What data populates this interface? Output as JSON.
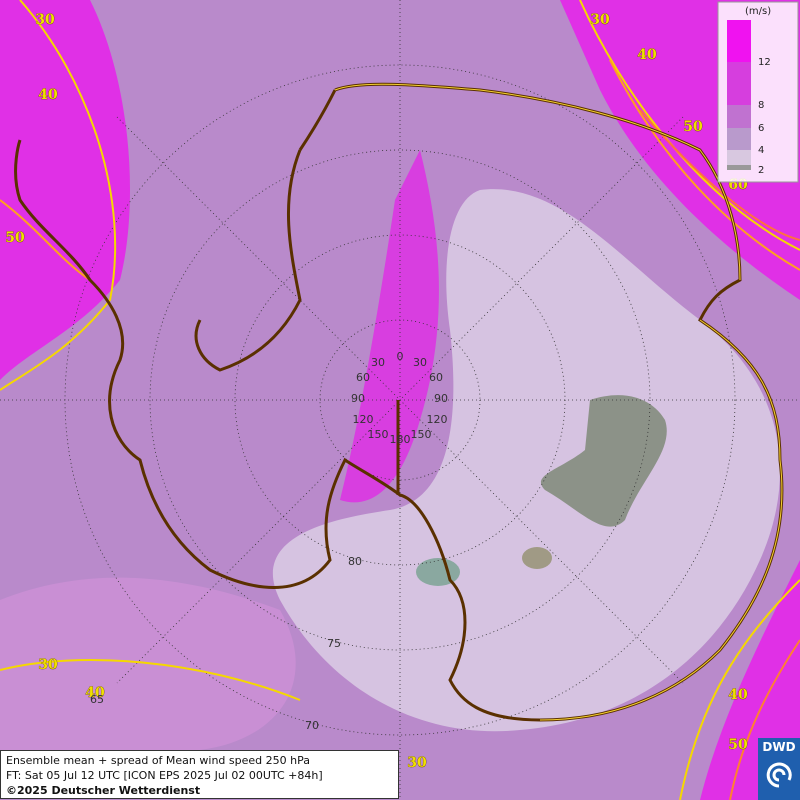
{
  "map": {
    "contour_labels": [
      30,
      40,
      50,
      30,
      40,
      50,
      60,
      30,
      40,
      40,
      50,
      30
    ],
    "graticule_labels": [
      "0",
      "30",
      "30",
      "60",
      "60",
      "90",
      "90",
      "120",
      "120",
      "150",
      "150",
      "180",
      "80",
      "75",
      "70",
      "65"
    ],
    "legend": {
      "unit": "(m/s)",
      "ticks": [
        12,
        8,
        6,
        4,
        2
      ]
    },
    "caption": {
      "line1": "Ensemble mean + spread of Mean wind speed 250 hPa",
      "line2": "FT: Sat 05 Jul 12 UTC [ICON EPS 2025 Jul 02 00UTC +84h]",
      "line3": "©2025 Deutscher Wetterdienst"
    },
    "logo": "DWD"
  }
}
